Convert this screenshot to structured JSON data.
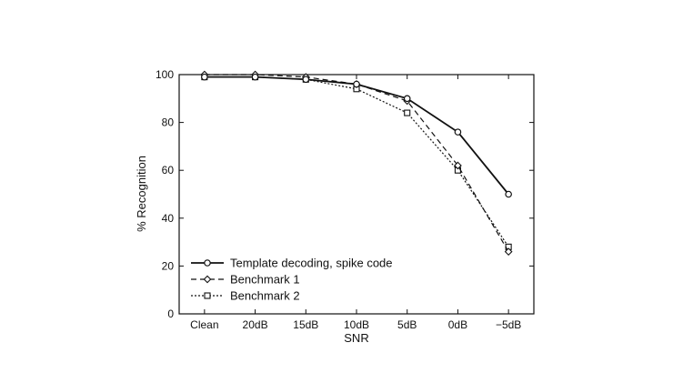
{
  "chart_data": {
    "type": "line",
    "categories": [
      "Clean",
      "20dB",
      "15dB",
      "10dB",
      "5dB",
      "0dB",
      "−5dB"
    ],
    "xlabel": "SNR",
    "ylabel": "% Recognition",
    "ylim": [
      0,
      100
    ],
    "yticks": [
      0,
      20,
      40,
      60,
      80,
      100
    ],
    "grid": false,
    "legend_position": "bottom-left",
    "series": [
      {
        "name": "Template decoding, spike code",
        "style": "solid",
        "marker": "circle",
        "values": [
          99,
          99,
          98,
          96,
          90,
          76,
          50
        ]
      },
      {
        "name": "Benchmark 1",
        "style": "dashed",
        "marker": "diamond",
        "values": [
          100,
          100,
          99,
          96,
          89,
          62,
          26
        ]
      },
      {
        "name": "Benchmark 2",
        "style": "dotted",
        "marker": "square",
        "values": [
          99,
          99,
          98,
          94,
          84,
          60,
          28
        ]
      }
    ]
  }
}
